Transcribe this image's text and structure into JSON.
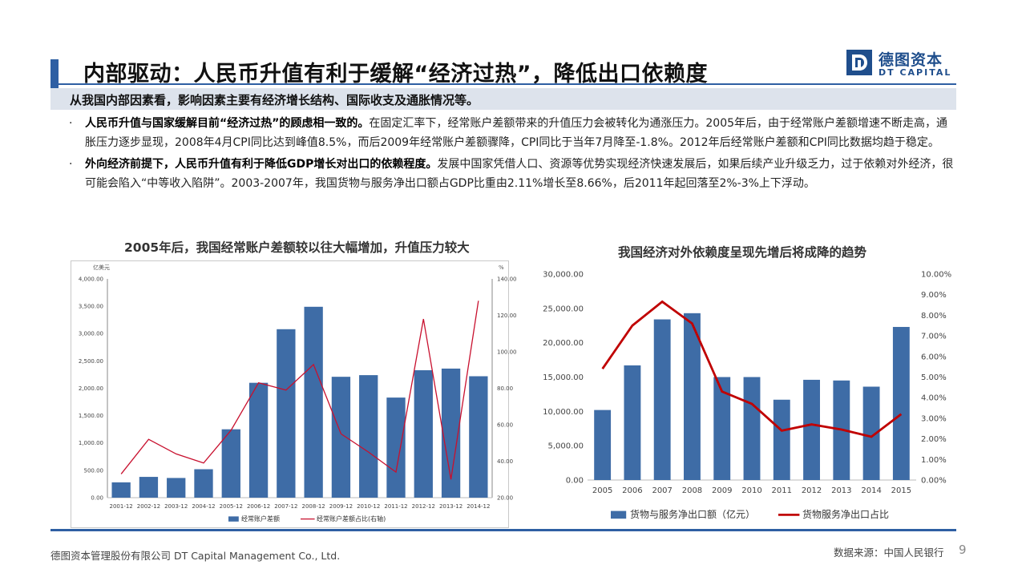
{
  "header": {
    "title": "内部驱动：人民币升值有利于缓解“经济过热”，降低出口依赖度",
    "logo_cn": "德图资本",
    "logo_en": "DT CAPITAL"
  },
  "intro": "从我国内部因素看，影响因素主要有经济增长结构、国际收支及通胀情况等。",
  "bullets": [
    {
      "lead": "人民币升值与国家缓解目前“经济过热”的顾虑相一致的。",
      "text": "在固定汇率下，经常账户差额带来的升值压力会被转化为通涨压力。2005年后，由于经常账户差额增速不断走高，通胀压力逐步显现，2008年4月CPI同比达到峰值8.5%，而后2009年经常账户差额骤降，CPI同比于当年7月降至-1.8%。2012年后经常账户差额和CPI同比数据均趋于稳定。"
    },
    {
      "lead": "外向经济前提下，人民币升值有利于降低GDP增长对出口的依赖程度。",
      "text": "发展中国家凭借人口、资源等优势实现经济快速发展后，如果后续产业升级乏力，过于依赖对外经济，很可能会陷入“中等收入陷阱”。2003-2007年，我国货物与服务净出口额占GDP比重由2.11%增长至8.66%，后2011年起回落至2%-3%上下浮动。"
    }
  ],
  "bullet_symbol": "·",
  "chart1_title": "2005年后，我国经常账户差额较以往大幅增加，升值压力较大",
  "chart2_title": "我国经济对外依赖度呈现先增后将成降的趋势",
  "chart_data": [
    {
      "type": "bar",
      "title": "2005年后，我国经常账户差额较以往大幅增加，升值压力较大",
      "ylabel": "亿美元",
      "y2label": "%",
      "categories": [
        "2001-12",
        "2002-12",
        "2003-12",
        "2004-12",
        "2005-12",
        "2006-12",
        "2007-12",
        "2008-12",
        "2009-12",
        "2010-12",
        "2011-12",
        "2012-12",
        "2013-12",
        "2014-12"
      ],
      "ylim": [
        0,
        4000
      ],
      "yticks": [
        "0.00",
        "500.00",
        "1,000.00",
        "1,500.00",
        "2,000.00",
        "2,500.00",
        "3,000.00",
        "3,500.00",
        "4,000.00"
      ],
      "y2lim": [
        20,
        140
      ],
      "y2ticks": [
        "20.00",
        "40.00",
        "60.00",
        "80.00",
        "100.00",
        "120.00",
        "140.00"
      ],
      "series": [
        {
          "name": "经常账户差额",
          "type": "bar",
          "color": "#3e6ca6",
          "values": [
            280,
            380,
            360,
            520,
            1250,
            2100,
            3080,
            3490,
            2210,
            2240,
            1830,
            2330,
            2360,
            2220
          ]
        },
        {
          "name": "经常账户差额占比(右轴)",
          "type": "line",
          "axis": "right",
          "color": "#c8102e",
          "values": [
            33,
            52,
            44,
            39,
            57,
            83,
            79,
            93,
            55,
            45,
            34,
            118,
            30,
            128
          ]
        }
      ],
      "legend": "bottom"
    },
    {
      "type": "bar",
      "title": "我国经济对外依赖度呈现先增后将成降的趋势",
      "categories": [
        "2005",
        "2006",
        "2007",
        "2008",
        "2009",
        "2010",
        "2011",
        "2012",
        "2013",
        "2014",
        "2015"
      ],
      "ylim": [
        0,
        30000
      ],
      "yticks": [
        "0.00",
        "5,000.00",
        "10,000.00",
        "15,000.00",
        "20,000.00",
        "25,000.00",
        "30,000.00"
      ],
      "y2lim": [
        0,
        10
      ],
      "y2ticks": [
        "0.00%",
        "1.00%",
        "2.00%",
        "3.00%",
        "4.00%",
        "5.00%",
        "6.00%",
        "7.00%",
        "8.00%",
        "9.00%",
        "10.00%"
      ],
      "series": [
        {
          "name": "货物与服务净出口额（亿元）",
          "type": "bar",
          "color": "#3e6ca6",
          "values": [
            10200,
            16700,
            23400,
            24300,
            15000,
            15000,
            11700,
            14600,
            14500,
            13600,
            22300
          ]
        },
        {
          "name": "货物服务净出口占比",
          "type": "line",
          "axis": "right",
          "color": "#c00000",
          "values": [
            5.4,
            7.5,
            8.66,
            7.6,
            4.3,
            3.7,
            2.4,
            2.7,
            2.45,
            2.1,
            3.2
          ]
        }
      ],
      "legend": "bottom"
    }
  ],
  "footer": {
    "company": "德图资本管理股份有限公司  DT Capital Management  Co., Ltd.",
    "source": "数据来源：中国人民银行",
    "page": "9"
  },
  "colors": {
    "accent": "#2e5fa3",
    "bar": "#3e6ca6",
    "line": "#c8102e"
  }
}
